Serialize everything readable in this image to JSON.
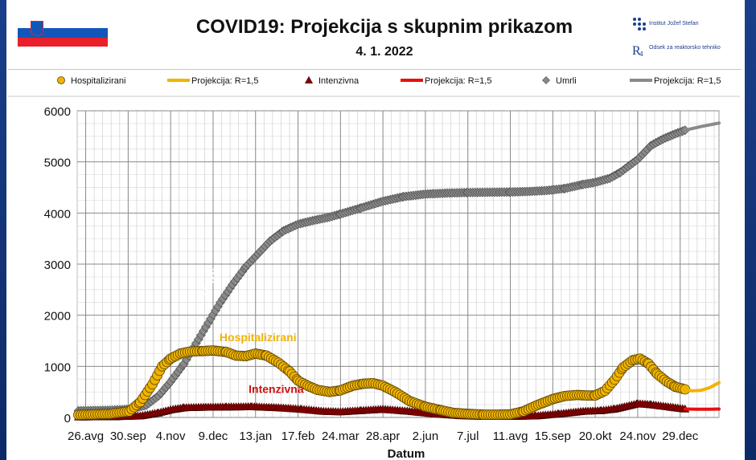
{
  "header": {
    "title": "COVID19: Projekcija s skupnim prikazom",
    "date": "4. 1. 2022",
    "institute_line1": "Institut Jožef Stefan",
    "institute_line2": "Odsek za reaktorsko tehniko",
    "logo_icon": "ijs-logo-icon",
    "flag_icon": "slovenia-flag-icon"
  },
  "chart_data": {
    "type": "line",
    "title": "",
    "xlabel": "Datum",
    "ylabel": "",
    "ylim": [
      0,
      6000
    ],
    "yticks": [
      0,
      1000,
      2000,
      3000,
      4000,
      5000,
      6000
    ],
    "xlim": [
      "2020-08-19",
      "2022-01-30"
    ],
    "xtick_labels": [
      "26.avg",
      "30.sep",
      "4.nov",
      "9.dec",
      "13.jan",
      "17.feb",
      "24.mar",
      "28.apr",
      "2.jun",
      "7.jul",
      "11.avg",
      "15.sep",
      "20.okt",
      "24.nov",
      "29.dec"
    ],
    "xtick_dates": [
      "2020-08-26",
      "2020-09-30",
      "2020-11-04",
      "2020-12-09",
      "2021-01-13",
      "2021-02-17",
      "2021-03-24",
      "2021-04-28",
      "2021-06-02",
      "2021-07-07",
      "2021-08-11",
      "2021-09-15",
      "2021-10-20",
      "2021-11-24",
      "2021-12-29"
    ],
    "grid": true,
    "legend_placement": "top",
    "legend": [
      {
        "label": "Hospitalizirani",
        "kind": "marker",
        "series": "hosp"
      },
      {
        "label": "Projekcija: R=1,5",
        "kind": "line",
        "series": "hosp_proj"
      },
      {
        "label": "Intenzivna",
        "kind": "marker",
        "series": "icu"
      },
      {
        "label": "Projekcija: R=1,5",
        "kind": "line",
        "series": "icu_proj"
      },
      {
        "label": "Umrli",
        "kind": "marker",
        "series": "deaths"
      },
      {
        "label": "Projekcija: R=1,5",
        "kind": "line",
        "series": "deaths_proj"
      }
    ],
    "annotations": [
      {
        "text": "Umrli",
        "color": "#ffffff",
        "date": "2020-12-09",
        "y": 2600,
        "rotate": -58,
        "size": 14
      },
      {
        "text": "Hospitalizirani",
        "color": "#f0b400",
        "date": "2021-01-15",
        "y": 1490,
        "rotate": 0,
        "size": 14
      },
      {
        "text": "Intenzivna",
        "color": "#d01010",
        "date": "2021-01-30",
        "y": 480,
        "rotate": 0,
        "size": 14
      }
    ],
    "series": [
      {
        "name": "Hospitalizirani",
        "id": "hosp",
        "color": "#f0b400",
        "stroke": "#5a4200",
        "style": "markers",
        "marker": "circle",
        "dates": [
          "2020-08-20",
          "2020-09-15",
          "2020-10-01",
          "2020-10-10",
          "2020-10-20",
          "2020-10-28",
          "2020-11-04",
          "2020-11-12",
          "2020-11-20",
          "2020-12-01",
          "2020-12-09",
          "2020-12-20",
          "2020-12-28",
          "2021-01-05",
          "2021-01-13",
          "2021-01-22",
          "2021-02-01",
          "2021-02-10",
          "2021-02-17",
          "2021-02-25",
          "2021-03-05",
          "2021-03-15",
          "2021-03-24",
          "2021-04-03",
          "2021-04-12",
          "2021-04-20",
          "2021-04-28",
          "2021-05-08",
          "2021-05-20",
          "2021-06-02",
          "2021-06-15",
          "2021-06-25",
          "2021-07-07",
          "2021-07-20",
          "2021-08-01",
          "2021-08-11",
          "2021-08-22",
          "2021-09-01",
          "2021-09-15",
          "2021-09-25",
          "2021-10-05",
          "2021-10-13",
          "2021-10-20",
          "2021-10-28",
          "2021-11-05",
          "2021-11-12",
          "2021-11-20",
          "2021-11-26",
          "2021-12-03",
          "2021-12-10",
          "2021-12-18",
          "2021-12-25",
          "2022-01-02"
        ],
        "values": [
          50,
          70,
          120,
          300,
          650,
          1000,
          1150,
          1250,
          1290,
          1300,
          1310,
          1280,
          1210,
          1200,
          1250,
          1210,
          1070,
          900,
          720,
          620,
          540,
          500,
          530,
          620,
          660,
          670,
          620,
          500,
          320,
          210,
          140,
          90,
          70,
          55,
          55,
          60,
          120,
          230,
          360,
          420,
          440,
          430,
          430,
          520,
          740,
          980,
          1120,
          1150,
          1050,
          850,
          700,
          600,
          550
        ]
      },
      {
        "name": "Projekcija: R=1,5",
        "id": "hosp_proj",
        "color": "#f0b400",
        "style": "line",
        "dates": [
          "2022-01-02",
          "2022-01-08",
          "2022-01-15",
          "2022-01-22",
          "2022-01-30"
        ],
        "values": [
          550,
          520,
          530,
          580,
          680
        ]
      },
      {
        "name": "Intenzivna",
        "id": "icu",
        "color": "#8b0000",
        "stroke": "#3a0000",
        "style": "markers",
        "marker": "triangle",
        "dates": [
          "2020-08-20",
          "2020-09-20",
          "2020-10-10",
          "2020-10-25",
          "2020-11-04",
          "2020-11-15",
          "2020-12-01",
          "2020-12-20",
          "2021-01-10",
          "2021-02-01",
          "2021-02-20",
          "2021-03-10",
          "2021-03-24",
          "2021-04-10",
          "2021-04-28",
          "2021-05-20",
          "2021-06-10",
          "2021-07-01",
          "2021-07-20",
          "2021-08-11",
          "2021-09-01",
          "2021-09-20",
          "2021-10-10",
          "2021-10-25",
          "2021-11-05",
          "2021-11-15",
          "2021-11-24",
          "2021-12-05",
          "2021-12-15",
          "2021-12-25",
          "2022-01-02"
        ],
        "values": [
          10,
          15,
          30,
          90,
          150,
          190,
          200,
          205,
          210,
          190,
          160,
          120,
          110,
          135,
          160,
          120,
          70,
          35,
          20,
          20,
          30,
          70,
          120,
          135,
          165,
          220,
          270,
          250,
          220,
          190,
          165
        ]
      },
      {
        "name": "Projekcija: R=1,5",
        "id": "icu_proj",
        "color": "#e81010",
        "style": "line",
        "dates": [
          "2022-01-02",
          "2022-01-12",
          "2022-01-22",
          "2022-01-30"
        ],
        "values": [
          165,
          160,
          160,
          165
        ]
      },
      {
        "name": "Umrli",
        "id": "deaths",
        "color": "#8a8a8a",
        "stroke": "#444444",
        "style": "markers",
        "marker": "diamond",
        "dates": [
          "2020-08-20",
          "2020-09-15",
          "2020-10-01",
          "2020-10-15",
          "2020-10-25",
          "2020-11-04",
          "2020-11-15",
          "2020-11-25",
          "2020-12-05",
          "2020-12-15",
          "2020-12-25",
          "2021-01-05",
          "2021-01-15",
          "2021-01-25",
          "2021-02-05",
          "2021-02-17",
          "2021-03-01",
          "2021-03-15",
          "2021-03-24",
          "2021-04-10",
          "2021-04-28",
          "2021-05-15",
          "2021-06-02",
          "2021-06-20",
          "2021-07-07",
          "2021-08-11",
          "2021-08-25",
          "2021-09-10",
          "2021-09-25",
          "2021-10-10",
          "2021-10-20",
          "2021-11-01",
          "2021-11-10",
          "2021-11-24",
          "2021-12-05",
          "2021-12-15",
          "2021-12-25",
          "2022-01-02"
        ],
        "values": [
          130,
          140,
          160,
          240,
          420,
          700,
          1050,
          1450,
          1850,
          2250,
          2600,
          2950,
          3200,
          3450,
          3650,
          3780,
          3850,
          3920,
          3980,
          4100,
          4230,
          4320,
          4370,
          4390,
          4400,
          4410,
          4420,
          4440,
          4480,
          4560,
          4600,
          4680,
          4800,
          5050,
          5320,
          5450,
          5550,
          5620
        ]
      },
      {
        "name": "Projekcija: R=1,5",
        "id": "deaths_proj",
        "color": "#8a8a8a",
        "style": "line",
        "dates": [
          "2022-01-02",
          "2022-01-15",
          "2022-01-30"
        ],
        "values": [
          5620,
          5690,
          5760
        ]
      }
    ]
  }
}
